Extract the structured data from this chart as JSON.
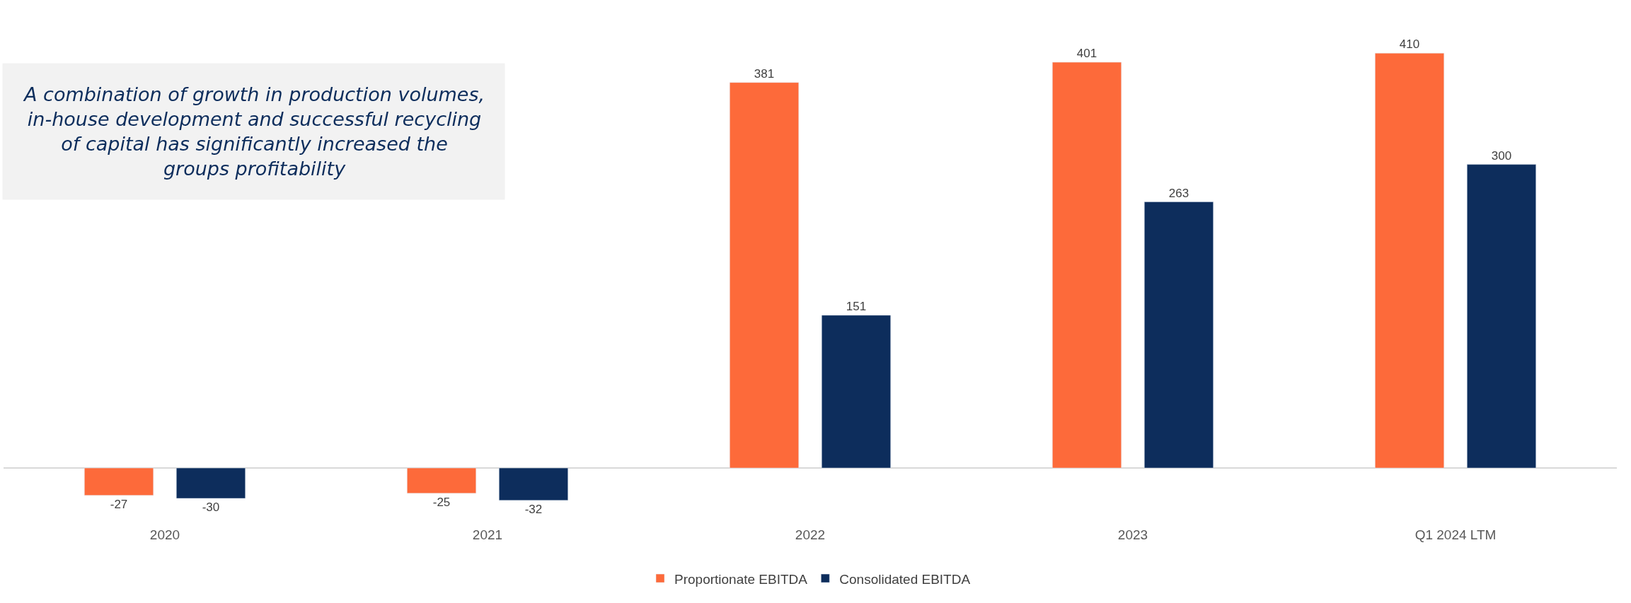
{
  "chart_data": {
    "type": "bar",
    "categories": [
      "2020",
      "2021",
      "2022",
      "2023",
      "Q1 2024 LTM"
    ],
    "series": [
      {
        "name": "Proportionate EBITDA",
        "color": "#fd6a3a",
        "values": [
          -27,
          -25,
          381,
          401,
          410
        ]
      },
      {
        "name": "Consolidated EBITDA",
        "color": "#0d2d5c",
        "values": [
          -30,
          -32,
          151,
          263,
          300
        ]
      }
    ],
    "data_labels": true,
    "legend": "bottom",
    "annotations": [
      "A combination of growth in production volumes, in-house development and successful recycling of capital has significantly increased the groups profitability"
    ]
  }
}
